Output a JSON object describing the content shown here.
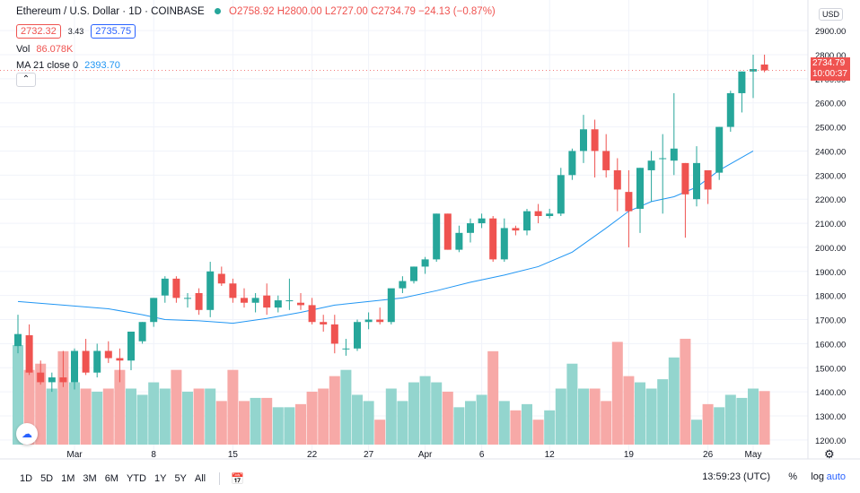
{
  "legend": {
    "symbol": "Ethereum / U.S. Dollar · 1D · COINBASE",
    "open": "O2758.92",
    "high": "H2800.00",
    "low": "L2727.00",
    "close": "C2734.79",
    "change": "−24.13 (−0.87%)"
  },
  "quote": {
    "bid": "2732.32",
    "spread": "3.43",
    "ask": "2735.75"
  },
  "volume": {
    "label": "Vol",
    "value": "86.078K"
  },
  "ma": {
    "label": "MA 21 close 0",
    "value": "2393.70"
  },
  "axis_currency": "USD",
  "last_price": {
    "price": "2734.79",
    "countdown": "10:00:37"
  },
  "timeframes": [
    "1D",
    "5D",
    "1M",
    "3M",
    "6M",
    "YTD",
    "1Y",
    "5Y",
    "All"
  ],
  "clock": "13:59:23 (UTC)",
  "options": {
    "percent": "%",
    "log": "log",
    "auto": "auto"
  },
  "colors": {
    "up": "#26a69a",
    "down": "#ef5350",
    "ma": "#2196f3",
    "vol_up": "#93d5ce",
    "vol_down": "#f7a9a7"
  },
  "chart_data": {
    "type": "candlestick",
    "title": "Ethereum / U.S. Dollar · 1D · COINBASE",
    "price_ticks": [
      1200,
      1300,
      1400,
      1500,
      1600,
      1700,
      1800,
      1900,
      2000,
      2100,
      2200,
      2300,
      2400,
      2500,
      2600,
      2700,
      2800,
      2900
    ],
    "price_range": [
      1155,
      2945
    ],
    "x_ticks": [
      {
        "index": 5,
        "label": "Mar"
      },
      {
        "index": 12,
        "label": "8"
      },
      {
        "index": 19,
        "label": "15"
      },
      {
        "index": 26,
        "label": "22"
      },
      {
        "index": 31,
        "label": "27"
      },
      {
        "index": 36,
        "label": "Apr"
      },
      {
        "index": 41,
        "label": "6"
      },
      {
        "index": 47,
        "label": "12"
      },
      {
        "index": 54,
        "label": "19"
      },
      {
        "index": 61,
        "label": "26"
      },
      {
        "index": 65,
        "label": "May"
      }
    ],
    "candles": [
      {
        "o": 1590,
        "h": 1720,
        "l": 1560,
        "c": 1640,
        "v": 160
      },
      {
        "o": 1635,
        "h": 1680,
        "l": 1470,
        "c": 1480,
        "v": 120
      },
      {
        "o": 1480,
        "h": 1530,
        "l": 1430,
        "c": 1440,
        "v": 130
      },
      {
        "o": 1440,
        "h": 1480,
        "l": 1400,
        "c": 1460,
        "v": 90
      },
      {
        "o": 1460,
        "h": 1570,
        "l": 1420,
        "c": 1440,
        "v": 150
      },
      {
        "o": 1440,
        "h": 1580,
        "l": 1410,
        "c": 1570,
        "v": 100
      },
      {
        "o": 1570,
        "h": 1620,
        "l": 1470,
        "c": 1480,
        "v": 90
      },
      {
        "o": 1480,
        "h": 1600,
        "l": 1460,
        "c": 1570,
        "v": 85
      },
      {
        "o": 1570,
        "h": 1610,
        "l": 1520,
        "c": 1540,
        "v": 90
      },
      {
        "o": 1540,
        "h": 1580,
        "l": 1440,
        "c": 1530,
        "v": 120
      },
      {
        "o": 1530,
        "h": 1640,
        "l": 1490,
        "c": 1650,
        "v": 90
      },
      {
        "o": 1610,
        "h": 1690,
        "l": 1600,
        "c": 1690,
        "v": 80
      },
      {
        "o": 1690,
        "h": 1790,
        "l": 1670,
        "c": 1790,
        "v": 100
      },
      {
        "o": 1800,
        "h": 1880,
        "l": 1770,
        "c": 1870,
        "v": 90
      },
      {
        "o": 1870,
        "h": 1880,
        "l": 1770,
        "c": 1790,
        "v": 120
      },
      {
        "o": 1790,
        "h": 1810,
        "l": 1750,
        "c": 1790,
        "v": 85
      },
      {
        "o": 1810,
        "h": 1830,
        "l": 1720,
        "c": 1740,
        "v": 90
      },
      {
        "o": 1740,
        "h": 1940,
        "l": 1710,
        "c": 1900,
        "v": 90
      },
      {
        "o": 1890,
        "h": 1920,
        "l": 1840,
        "c": 1850,
        "v": 70
      },
      {
        "o": 1850,
        "h": 1870,
        "l": 1770,
        "c": 1790,
        "v": 120
      },
      {
        "o": 1790,
        "h": 1830,
        "l": 1750,
        "c": 1770,
        "v": 70
      },
      {
        "o": 1770,
        "h": 1810,
        "l": 1730,
        "c": 1790,
        "v": 75
      },
      {
        "o": 1800,
        "h": 1850,
        "l": 1720,
        "c": 1750,
        "v": 75
      },
      {
        "o": 1750,
        "h": 1800,
        "l": 1730,
        "c": 1780,
        "v": 60
      },
      {
        "o": 1780,
        "h": 1870,
        "l": 1740,
        "c": 1780,
        "v": 60
      },
      {
        "o": 1770,
        "h": 1810,
        "l": 1740,
        "c": 1760,
        "v": 65
      },
      {
        "o": 1760,
        "h": 1790,
        "l": 1680,
        "c": 1690,
        "v": 85
      },
      {
        "o": 1690,
        "h": 1720,
        "l": 1650,
        "c": 1680,
        "v": 90
      },
      {
        "o": 1680,
        "h": 1720,
        "l": 1560,
        "c": 1600,
        "v": 110
      },
      {
        "o": 1580,
        "h": 1620,
        "l": 1550,
        "c": 1580,
        "v": 120
      },
      {
        "o": 1580,
        "h": 1700,
        "l": 1570,
        "c": 1690,
        "v": 80
      },
      {
        "o": 1690,
        "h": 1730,
        "l": 1660,
        "c": 1700,
        "v": 70
      },
      {
        "o": 1700,
        "h": 1750,
        "l": 1680,
        "c": 1690,
        "v": 40
      },
      {
        "o": 1690,
        "h": 1820,
        "l": 1680,
        "c": 1830,
        "v": 90
      },
      {
        "o": 1830,
        "h": 1880,
        "l": 1810,
        "c": 1860,
        "v": 70
      },
      {
        "o": 1860,
        "h": 1920,
        "l": 1850,
        "c": 1920,
        "v": 100
      },
      {
        "o": 1920,
        "h": 1960,
        "l": 1890,
        "c": 1950,
        "v": 110
      },
      {
        "o": 1950,
        "h": 2140,
        "l": 1940,
        "c": 2140,
        "v": 100
      },
      {
        "o": 2140,
        "h": 2140,
        "l": 1990,
        "c": 1990,
        "v": 85
      },
      {
        "o": 1990,
        "h": 2090,
        "l": 1980,
        "c": 2060,
        "v": 60
      },
      {
        "o": 2060,
        "h": 2120,
        "l": 2020,
        "c": 2100,
        "v": 70
      },
      {
        "o": 2100,
        "h": 2140,
        "l": 2080,
        "c": 2120,
        "v": 80
      },
      {
        "o": 2120,
        "h": 2130,
        "l": 1940,
        "c": 1950,
        "v": 150
      },
      {
        "o": 1950,
        "h": 2120,
        "l": 1940,
        "c": 2080,
        "v": 70
      },
      {
        "o": 2080,
        "h": 2090,
        "l": 2050,
        "c": 2070,
        "v": 55
      },
      {
        "o": 2070,
        "h": 2160,
        "l": 2050,
        "c": 2150,
        "v": 65
      },
      {
        "o": 2150,
        "h": 2180,
        "l": 2100,
        "c": 2130,
        "v": 40
      },
      {
        "o": 2130,
        "h": 2160,
        "l": 2120,
        "c": 2140,
        "v": 55
      },
      {
        "o": 2140,
        "h": 2330,
        "l": 2130,
        "c": 2300,
        "v": 90
      },
      {
        "o": 2300,
        "h": 2410,
        "l": 2280,
        "c": 2400,
        "v": 130
      },
      {
        "o": 2400,
        "h": 2550,
        "l": 2350,
        "c": 2490,
        "v": 90
      },
      {
        "o": 2490,
        "h": 2530,
        "l": 2290,
        "c": 2400,
        "v": 90
      },
      {
        "o": 2400,
        "h": 2470,
        "l": 2290,
        "c": 2320,
        "v": 70
      },
      {
        "o": 2320,
        "h": 2370,
        "l": 2150,
        "c": 2240,
        "v": 165
      },
      {
        "o": 2230,
        "h": 2320,
        "l": 2000,
        "c": 2150,
        "v": 110
      },
      {
        "o": 2160,
        "h": 2330,
        "l": 2060,
        "c": 2330,
        "v": 100
      },
      {
        "o": 2320,
        "h": 2400,
        "l": 2190,
        "c": 2360,
        "v": 90
      },
      {
        "o": 2370,
        "h": 2470,
        "l": 2140,
        "c": 2370,
        "v": 105
      },
      {
        "o": 2360,
        "h": 2640,
        "l": 2300,
        "c": 2410,
        "v": 140
      },
      {
        "o": 2350,
        "h": 2350,
        "l": 2040,
        "c": 2220,
        "v": 170
      },
      {
        "o": 2200,
        "h": 2420,
        "l": 2170,
        "c": 2350,
        "v": 40
      },
      {
        "o": 2320,
        "h": 2310,
        "l": 2180,
        "c": 2240,
        "v": 65
      },
      {
        "o": 2310,
        "h": 2500,
        "l": 2280,
        "c": 2500,
        "v": 60
      },
      {
        "o": 2500,
        "h": 2650,
        "l": 2480,
        "c": 2640,
        "v": 80
      },
      {
        "o": 2640,
        "h": 2730,
        "l": 2560,
        "c": 2730,
        "v": 75
      },
      {
        "o": 2730,
        "h": 2800,
        "l": 2620,
        "c": 2740,
        "v": 90
      },
      {
        "o": 2758.92,
        "h": 2800,
        "l": 2727,
        "c": 2734.79,
        "v": 86
      }
    ],
    "ma21": [
      [
        0,
        1775
      ],
      [
        4,
        1760
      ],
      [
        8,
        1745
      ],
      [
        11,
        1720
      ],
      [
        13,
        1700
      ],
      [
        16,
        1695
      ],
      [
        19,
        1685
      ],
      [
        22,
        1705
      ],
      [
        25,
        1730
      ],
      [
        28,
        1760
      ],
      [
        31,
        1775
      ],
      [
        34,
        1790
      ],
      [
        37,
        1820
      ],
      [
        40,
        1855
      ],
      [
        43,
        1885
      ],
      [
        46,
        1920
      ],
      [
        49,
        1980
      ],
      [
        52,
        2080
      ],
      [
        54,
        2150
      ],
      [
        56,
        2190
      ],
      [
        58,
        2210
      ],
      [
        60,
        2250
      ],
      [
        62,
        2320
      ],
      [
        65,
        2400
      ]
    ],
    "volume_ylim": [
      0,
      180
    ]
  }
}
